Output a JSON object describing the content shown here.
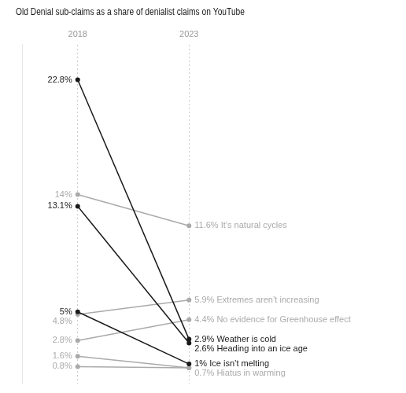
{
  "chart_data": {
    "type": "line",
    "title": "Old Denial sub-claims as a share of denialist claims on YouTube",
    "categories": [
      "2018",
      "2023"
    ],
    "series": [
      {
        "color": "#1a1a1a",
        "values": [
          22.8,
          2.9
        ],
        "value_labels": [
          "22.8%",
          "2.9% Weather is cold"
        ]
      },
      {
        "color": "#1a1a1a",
        "values": [
          13.1,
          2.6
        ],
        "value_labels": [
          "13.1%",
          "2.6% Heading into an ice age"
        ]
      },
      {
        "color": "#1a1a1a",
        "values": [
          5.0,
          1.0
        ],
        "value_labels": [
          "5%",
          "1% Ice isn’t melting"
        ]
      },
      {
        "color": "#aaaaaa",
        "values": [
          14.0,
          11.6
        ],
        "value_labels": [
          "14%",
          "11.6% It’s natural cycles"
        ]
      },
      {
        "color": "#aaaaaa",
        "values": [
          4.8,
          5.9
        ],
        "value_labels": [
          "4.8%",
          "5.9% Extremes aren’t increasing"
        ]
      },
      {
        "color": "#aaaaaa",
        "values": [
          2.8,
          4.4
        ],
        "value_labels": [
          "2.8%",
          "4.4% No evidence for Greenhouse effect"
        ]
      },
      {
        "color": "#aaaaaa",
        "values": [
          1.6,
          0.7
        ],
        "value_labels": [
          "1.6%",
          "0.7% Hiatus in warming"
        ]
      },
      {
        "color": "#aaaaaa",
        "values": [
          0.8,
          0.7
        ],
        "value_labels": [
          "0.8%",
          null
        ]
      }
    ],
    "ylim": [
      -0.5,
      25.5
    ],
    "tick_labels": "x",
    "grid": true,
    "data_labels": true
  }
}
